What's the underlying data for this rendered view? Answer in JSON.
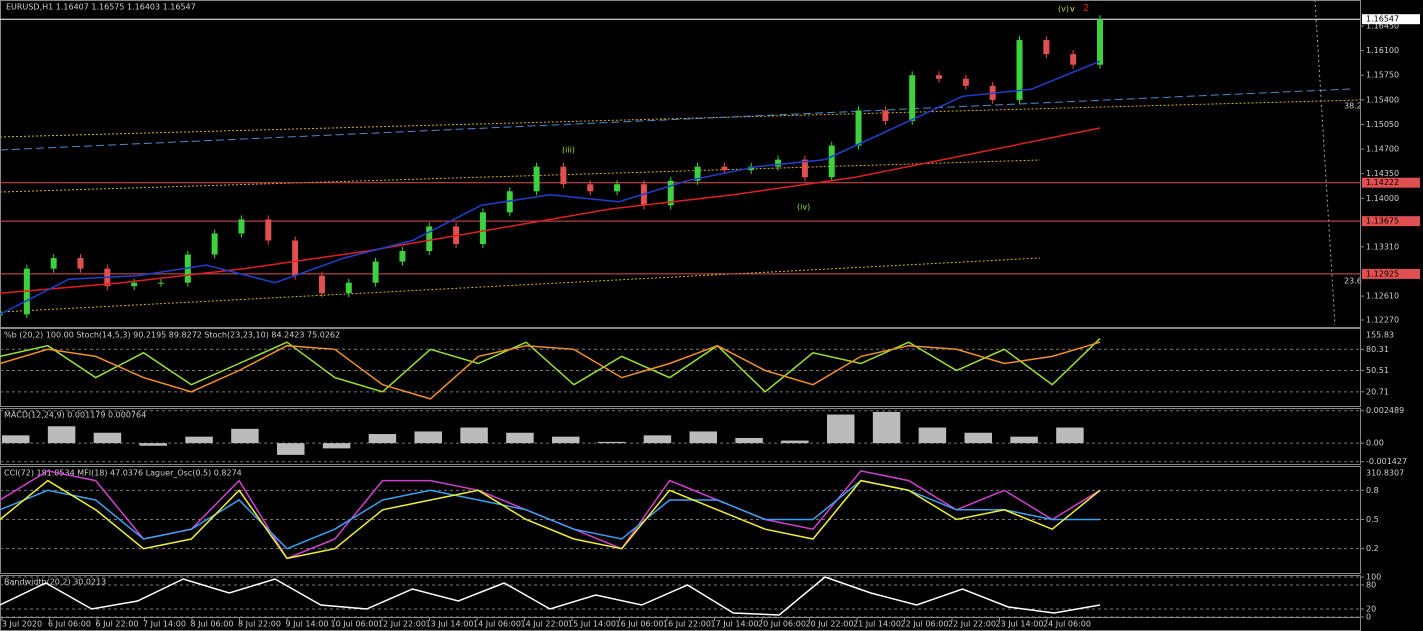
{
  "header": "EURUSD,H1  1.16407 1.16575 1.16403 1.16547",
  "annotations": [
    "(v)",
    "v",
    "2",
    "(iii)",
    "(iv)",
    "38.2",
    "23.6"
  ],
  "xlabels": [
    "3 Jul 2020",
    "6 Jul 06:00",
    "6 Jul 22:00",
    "7 Jul 14:00",
    "8 Jul 06:00",
    "8 Jul 22:00",
    "9 Jul 14:00",
    "10 Jul 06:00",
    "12 Jul 22:00",
    "13 Jul 14:00",
    "14 Jul 06:00",
    "14 Jul 22:00",
    "15 Jul 14:00",
    "16 Jul 06:00",
    "16 Jul 22:00",
    "17 Jul 14:00",
    "20 Jul 06:00",
    "20 Jul 22:00",
    "21 Jul 14:00",
    "22 Jul 06:00",
    "22 Jul 22:00",
    "23 Jul 14:00",
    "24 Jul 06:00"
  ],
  "panels": [
    {
      "title": "",
      "ylim": [
        1.1217,
        1.1682
      ],
      "ticks": [
        {
          "value": 1.1645,
          "label": "1.16450"
        },
        {
          "value": 1.161,
          "label": "1.16100"
        },
        {
          "value": 1.1575,
          "label": "1.15750"
        },
        {
          "value": 1.154,
          "label": "1.15400"
        },
        {
          "value": 1.1505,
          "label": "1.15050"
        },
        {
          "value": 1.147,
          "label": "1.14700"
        },
        {
          "value": 1.1435,
          "label": "1.14350"
        },
        {
          "value": 1.14,
          "label": "1.14000"
        },
        {
          "value": 1.1331,
          "label": "1.13310"
        },
        {
          "value": 1.1261,
          "label": "1.12610"
        },
        {
          "value": 1.1227,
          "label": "1.12270"
        }
      ],
      "levels": [
        {
          "value": 1.16547,
          "label": "1.16547",
          "color": "#ffffff"
        },
        {
          "value": 1.14222,
          "label": "1.14222",
          "color": "#e05050"
        },
        {
          "value": 1.13675,
          "label": "1.13675",
          "color": "#e05050"
        },
        {
          "value": 1.12925,
          "label": "1.12925",
          "color": "#e05050"
        }
      ],
      "candles": [
        1.1235,
        1.13,
        1.1315,
        1.13,
        1.1275,
        1.128,
        1.128,
        1.132,
        1.135,
        1.137,
        1.134,
        1.129,
        1.1265,
        1.128,
        1.131,
        1.1325,
        1.136,
        1.1335,
        1.138,
        1.141,
        1.1445,
        1.142,
        1.141,
        1.142,
        1.139,
        1.1425,
        1.1445,
        1.144,
        1.1445,
        1.1455,
        1.143,
        1.1475,
        1.1525,
        1.151,
        1.1575,
        1.157,
        1.156,
        1.154,
        1.1625,
        1.1605,
        1.159,
        1.16547
      ],
      "series": [
        {
          "name": "MA",
          "color": "#e02020",
          "values": [
            1.1265,
            1.128,
            1.13,
            1.1325,
            1.1355,
            1.1385,
            1.1405,
            1.143,
            1.1465,
            1.15
          ]
        },
        {
          "name": "MA2",
          "color": "#2040d0",
          "values": [
            1.1235,
            1.1285,
            1.129,
            1.1305,
            1.128,
            1.1315,
            1.134,
            1.139,
            1.1405,
            1.1395,
            1.1425,
            1.1445,
            1.1455,
            1.15,
            1.1545,
            1.1555,
            1.1595
          ]
        }
      ]
    },
    {
      "title": "%b (20,2) 100.00 Stoch(14,5,3) 90.2195 89.8272  Stoch(23,23,10) 84.2423 75.0262",
      "top_label": "155.83",
      "ylim": [
        0,
        110
      ],
      "ticks": [
        {
          "value": 80,
          "label": "80.31"
        },
        {
          "value": 50,
          "label": "50.51"
        },
        {
          "value": 20,
          "label": "20.71"
        }
      ],
      "series": [
        {
          "name": "%b",
          "color": "#9be22d",
          "values": [
            70,
            85,
            40,
            75,
            30,
            60,
            90,
            40,
            20,
            80,
            60,
            90,
            30,
            70,
            40,
            85,
            20,
            75,
            60,
            90,
            50,
            80,
            30,
            95
          ]
        },
        {
          "name": "Stoch",
          "color": "#f0902a",
          "values": [
            60,
            80,
            70,
            40,
            20,
            50,
            85,
            80,
            30,
            10,
            70,
            85,
            80,
            40,
            60,
            85,
            50,
            30,
            70,
            85,
            80,
            60,
            70,
            90
          ]
        }
      ]
    },
    {
      "title": "MACD(12,24,9) 0.001179 0.000764",
      "ylim": [
        -0.0016,
        0.0027
      ],
      "ticks": [
        0.002489,
        {
          "value": 0,
          "label": "0.00"
        },
        -0.001427
      ],
      "bars": [
        0.0006,
        0.0013,
        0.0008,
        -0.0002,
        0.0005,
        0.0011,
        -0.0009,
        -0.0004,
        0.0007,
        0.0009,
        0.0012,
        0.0008,
        0.0005,
        0.0001,
        0.0006,
        0.0009,
        0.0004,
        0.0002,
        0.0022,
        0.0024,
        0.0012,
        0.0008,
        0.0005,
        0.0012
      ]
    },
    {
      "title": "CCI(72) 181.0534  MFI(18) 47.0376  Laguer_Osc(0.5) 0.8274",
      "top_label": "310.8307",
      "ylim": [
        -0.05,
        1.05
      ],
      "ticks": [
        0.8,
        0.5,
        0.2
      ],
      "series": [
        {
          "name": "MFI",
          "color": "#d040d0",
          "values": [
            0.7,
            1.0,
            0.9,
            0.3,
            0.4,
            0.9,
            0.1,
            0.3,
            0.9,
            0.9,
            0.8,
            0.6,
            0.4,
            0.2,
            0.9,
            0.7,
            0.5,
            0.4,
            1.0,
            0.9,
            0.6,
            0.8,
            0.5,
            0.8
          ]
        },
        {
          "name": "CCI",
          "color": "#3aa0f0",
          "values": [
            0.6,
            0.8,
            0.7,
            0.3,
            0.4,
            0.7,
            0.2,
            0.4,
            0.7,
            0.8,
            0.7,
            0.6,
            0.4,
            0.3,
            0.7,
            0.7,
            0.5,
            0.5,
            0.9,
            0.8,
            0.6,
            0.6,
            0.5,
            0.5
          ]
        },
        {
          "name": "Laguerre",
          "color": "#f0f030",
          "values": [
            0.5,
            0.9,
            0.6,
            0.2,
            0.3,
            0.8,
            0.1,
            0.2,
            0.6,
            0.7,
            0.8,
            0.5,
            0.3,
            0.2,
            0.8,
            0.6,
            0.4,
            0.3,
            0.9,
            0.8,
            0.5,
            0.6,
            0.4,
            0.8
          ]
        }
      ]
    },
    {
      "title": "Bandwidth(20,2) 30.0213",
      "ylim": [
        0,
        105
      ],
      "ticks": [
        100,
        80,
        20,
        0
      ],
      "series": [
        {
          "name": "Bandwidth",
          "color": "#ffffff",
          "values": [
            30,
            85,
            20,
            40,
            95,
            60,
            95,
            30,
            20,
            70,
            40,
            85,
            20,
            55,
            30,
            80,
            10,
            5,
            100,
            60,
            30,
            70,
            25,
            10,
            30
          ]
        }
      ]
    }
  ]
}
